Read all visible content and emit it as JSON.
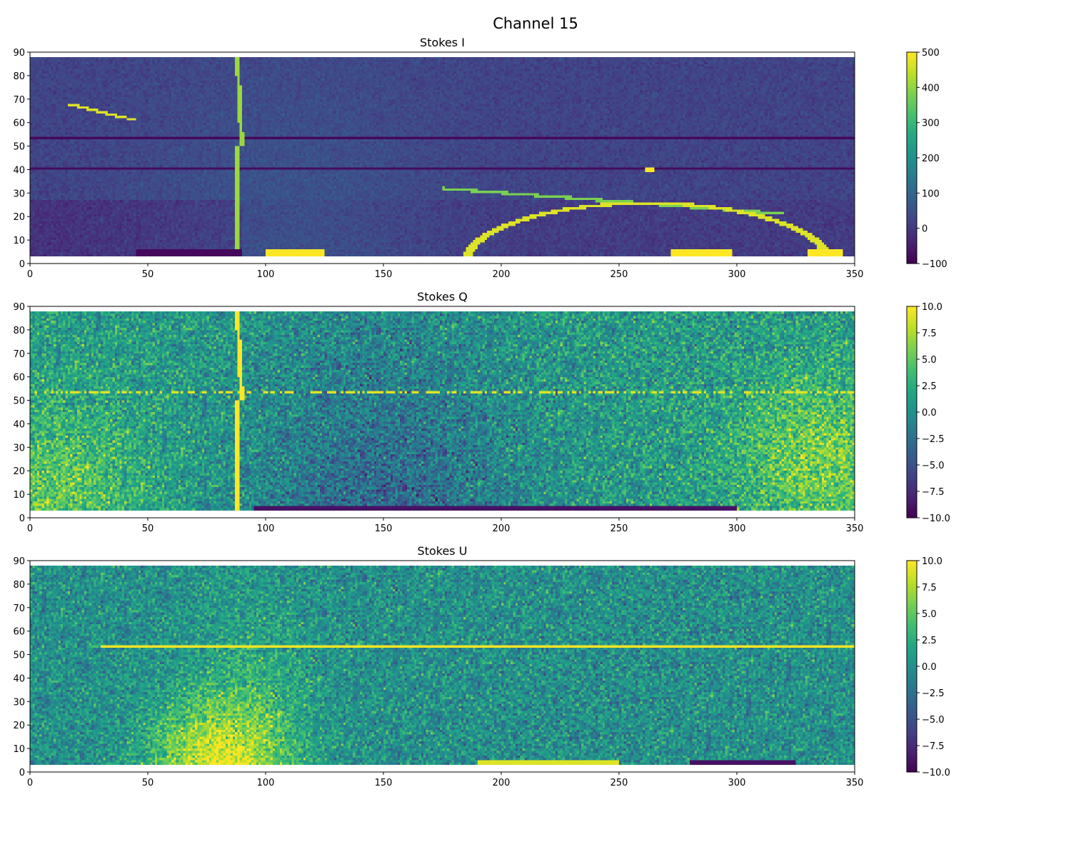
{
  "figure": {
    "title": "Channel 15"
  },
  "chart_data": [
    {
      "type": "heatmap",
      "title": "Stokes I",
      "xlim": [
        0,
        350
      ],
      "ylim": [
        0,
        90
      ],
      "xticks": [
        "0",
        "50",
        "100",
        "150",
        "200",
        "250",
        "300",
        "350"
      ],
      "yticks": [
        "0",
        "10",
        "20",
        "30",
        "40",
        "50",
        "60",
        "70",
        "80",
        "90"
      ],
      "colormap": "viridis",
      "colorbar": {
        "min": -100,
        "max": 500,
        "ticks": [
          "500",
          "400",
          "300",
          "200",
          "100",
          "0",
          "−100"
        ]
      },
      "data_extent": {
        "x": [
          0,
          350
        ],
        "y": [
          3,
          88
        ]
      }
    },
    {
      "type": "heatmap",
      "title": "Stokes Q",
      "xlim": [
        0,
        350
      ],
      "ylim": [
        0,
        90
      ],
      "xticks": [
        "0",
        "50",
        "100",
        "150",
        "200",
        "250",
        "300",
        "350"
      ],
      "yticks": [
        "0",
        "10",
        "20",
        "30",
        "40",
        "50",
        "60",
        "70",
        "80",
        "90"
      ],
      "colormap": "viridis",
      "colorbar": {
        "min": -10,
        "max": 10,
        "ticks": [
          "10.0",
          "7.5",
          "5.0",
          "2.5",
          "0.0",
          "−2.5",
          "−5.0",
          "−7.5",
          "−10.0"
        ]
      },
      "data_extent": {
        "x": [
          0,
          350
        ],
        "y": [
          3,
          88
        ]
      }
    },
    {
      "type": "heatmap",
      "title": "Stokes U",
      "xlim": [
        0,
        350
      ],
      "ylim": [
        0,
        90
      ],
      "xticks": [
        "0",
        "50",
        "100",
        "150",
        "200",
        "250",
        "300",
        "350"
      ],
      "yticks": [
        "0",
        "10",
        "20",
        "30",
        "40",
        "50",
        "60",
        "70",
        "80",
        "90"
      ],
      "colormap": "viridis",
      "colorbar": {
        "min": -10,
        "max": 10,
        "ticks": [
          "10.0",
          "7.5",
          "5.0",
          "2.5",
          "0.0",
          "−2.5",
          "−5.0",
          "−7.5",
          "−10.0"
        ]
      },
      "data_extent": {
        "x": [
          0,
          350
        ],
        "y": [
          3,
          88
        ]
      }
    }
  ]
}
